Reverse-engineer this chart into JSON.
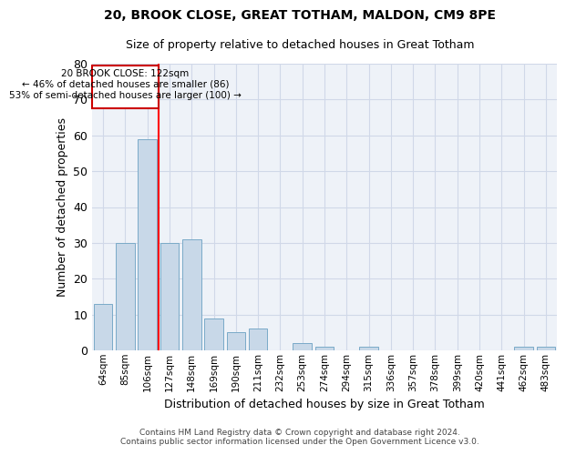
{
  "title1": "20, BROOK CLOSE, GREAT TOTHAM, MALDON, CM9 8PE",
  "title2": "Size of property relative to detached houses in Great Totham",
  "xlabel": "Distribution of detached houses by size in Great Totham",
  "ylabel": "Number of detached properties",
  "footnote": "Contains HM Land Registry data © Crown copyright and database right 2024.\nContains public sector information licensed under the Open Government Licence v3.0.",
  "bin_labels": [
    "64sqm",
    "85sqm",
    "106sqm",
    "127sqm",
    "148sqm",
    "169sqm",
    "190sqm",
    "211sqm",
    "232sqm",
    "253sqm",
    "274sqm",
    "294sqm",
    "315sqm",
    "336sqm",
    "357sqm",
    "378sqm",
    "399sqm",
    "420sqm",
    "441sqm",
    "462sqm",
    "483sqm"
  ],
  "bar_heights": [
    13,
    30,
    59,
    30,
    31,
    9,
    5,
    6,
    0,
    2,
    1,
    0,
    1,
    0,
    0,
    0,
    0,
    0,
    0,
    1,
    1
  ],
  "bar_color": "#c8d8e8",
  "bar_edge_color": "#7aaac8",
  "grid_color": "#d0d8e8",
  "background_color": "#eef2f8",
  "property_line_label": "20 BROOK CLOSE: 122sqm",
  "annotation_line1": "← 46% of detached houses are smaller (86)",
  "annotation_line2": "53% of semi-detached houses are larger (100) →",
  "annotation_box_color": "#cc0000",
  "ylim": [
    0,
    80
  ],
  "yticks": [
    0,
    10,
    20,
    30,
    40,
    50,
    60,
    70,
    80
  ]
}
